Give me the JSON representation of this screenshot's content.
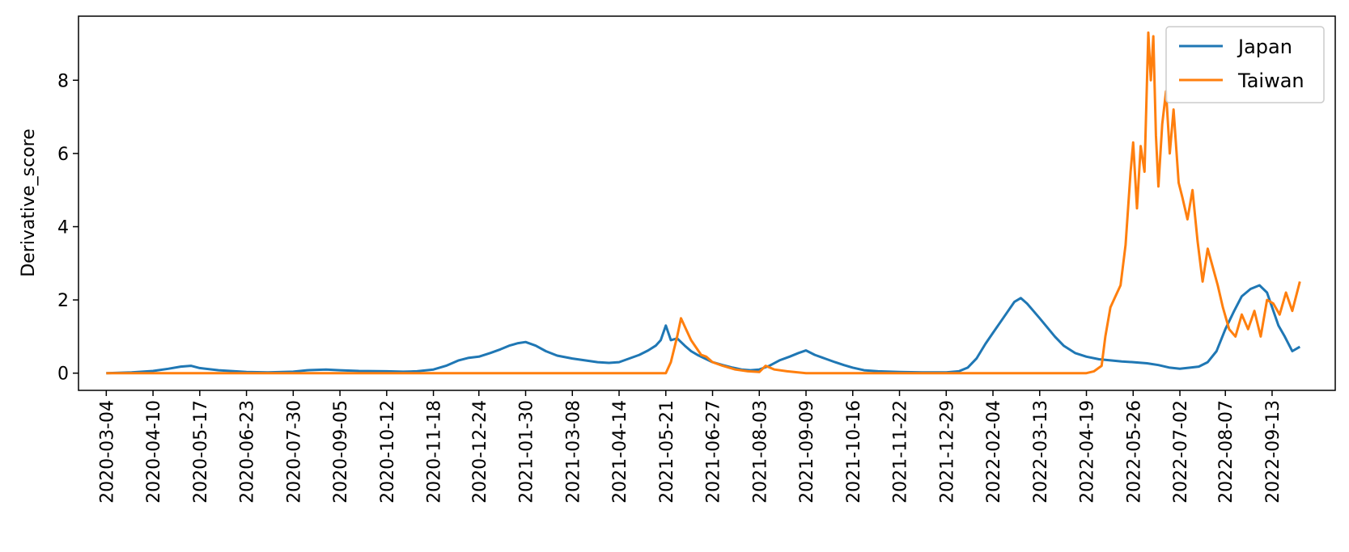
{
  "chart_data": {
    "type": "line",
    "title": "",
    "xlabel": "",
    "ylabel": "Derivative_score",
    "x_range": [
      "2020-02-11",
      "2022-11-02"
    ],
    "ylim": [
      -0.47,
      9.75
    ],
    "grid": false,
    "legend_position": "top-right",
    "x_ticks": [
      "2020-03-04",
      "2020-04-10",
      "2020-05-17",
      "2020-06-23",
      "2020-07-30",
      "2020-09-05",
      "2020-10-12",
      "2020-11-18",
      "2020-12-24",
      "2021-01-30",
      "2021-03-08",
      "2021-04-14",
      "2021-05-21",
      "2021-06-27",
      "2021-08-03",
      "2021-09-09",
      "2021-10-16",
      "2021-11-22",
      "2021-12-29",
      "2022-02-04",
      "2022-03-13",
      "2022-04-19",
      "2022-05-26",
      "2022-07-02",
      "2022-08-07",
      "2022-09-13"
    ],
    "y_ticks": [
      0,
      2,
      4,
      6,
      8
    ],
    "y_tick_labels": [
      "0",
      "2",
      "4",
      "6",
      "8"
    ],
    "series": [
      {
        "name": "Japan",
        "color": "#1f77b4",
        "x": [
          "2020-03-04",
          "2020-03-24",
          "2020-04-10",
          "2020-04-22",
          "2020-05-02",
          "2020-05-10",
          "2020-05-17",
          "2020-06-01",
          "2020-06-23",
          "2020-07-10",
          "2020-07-30",
          "2020-08-10",
          "2020-08-25",
          "2020-09-05",
          "2020-09-20",
          "2020-10-12",
          "2020-10-25",
          "2020-11-05",
          "2020-11-18",
          "2020-11-28",
          "2020-12-08",
          "2020-12-16",
          "2020-12-24",
          "2021-01-02",
          "2021-01-10",
          "2021-01-17",
          "2021-01-24",
          "2021-01-30",
          "2021-02-07",
          "2021-02-15",
          "2021-02-24",
          "2021-03-08",
          "2021-03-18",
          "2021-03-28",
          "2021-04-06",
          "2021-04-14",
          "2021-04-22",
          "2021-04-30",
          "2021-05-07",
          "2021-05-13",
          "2021-05-17",
          "2021-05-21",
          "2021-05-25",
          "2021-05-30",
          "2021-06-05",
          "2021-06-10",
          "2021-06-15",
          "2021-06-21",
          "2021-06-27",
          "2021-07-05",
          "2021-07-13",
          "2021-07-20",
          "2021-07-27",
          "2021-08-03",
          "2021-08-11",
          "2021-08-19",
          "2021-08-27",
          "2021-09-03",
          "2021-09-09",
          "2021-09-16",
          "2021-09-24",
          "2021-10-02",
          "2021-10-09",
          "2021-10-16",
          "2021-10-25",
          "2021-11-05",
          "2021-11-22",
          "2021-12-10",
          "2021-12-29",
          "2022-01-08",
          "2022-01-15",
          "2022-01-22",
          "2022-01-29",
          "2022-02-04",
          "2022-02-10",
          "2022-02-16",
          "2022-02-21",
          "2022-02-26",
          "2022-03-03",
          "2022-03-08",
          "2022-03-13",
          "2022-03-19",
          "2022-03-25",
          "2022-04-01",
          "2022-04-10",
          "2022-04-19",
          "2022-04-29",
          "2022-05-08",
          "2022-05-17",
          "2022-05-26",
          "2022-06-06",
          "2022-06-15",
          "2022-06-24",
          "2022-07-02",
          "2022-07-10",
          "2022-07-17",
          "2022-07-24",
          "2022-07-31",
          "2022-08-07",
          "2022-08-14",
          "2022-08-20",
          "2022-08-27",
          "2022-09-03",
          "2022-09-09",
          "2022-09-13",
          "2022-09-18",
          "2022-09-23",
          "2022-09-29",
          "2022-10-05"
        ],
        "values": [
          0.0,
          0.02,
          0.06,
          0.12,
          0.18,
          0.2,
          0.14,
          0.08,
          0.03,
          0.02,
          0.04,
          0.08,
          0.1,
          0.08,
          0.06,
          0.05,
          0.04,
          0.05,
          0.1,
          0.2,
          0.35,
          0.42,
          0.45,
          0.55,
          0.65,
          0.75,
          0.82,
          0.85,
          0.75,
          0.6,
          0.48,
          0.4,
          0.35,
          0.3,
          0.28,
          0.3,
          0.4,
          0.5,
          0.62,
          0.75,
          0.9,
          1.3,
          0.9,
          0.95,
          0.75,
          0.6,
          0.5,
          0.4,
          0.3,
          0.22,
          0.15,
          0.1,
          0.08,
          0.1,
          0.2,
          0.35,
          0.45,
          0.55,
          0.62,
          0.5,
          0.4,
          0.3,
          0.22,
          0.15,
          0.08,
          0.05,
          0.03,
          0.02,
          0.02,
          0.05,
          0.15,
          0.4,
          0.8,
          1.1,
          1.4,
          1.7,
          1.95,
          2.05,
          1.9,
          1.7,
          1.5,
          1.25,
          1.0,
          0.75,
          0.55,
          0.45,
          0.38,
          0.35,
          0.32,
          0.3,
          0.27,
          0.22,
          0.15,
          0.12,
          0.15,
          0.18,
          0.3,
          0.6,
          1.2,
          1.7,
          2.1,
          2.3,
          2.4,
          2.2,
          1.8,
          1.3,
          1.0,
          0.6,
          0.72
        ]
      },
      {
        "name": "Taiwan",
        "color": "#ff7f0e",
        "x": [
          "2020-03-04",
          "2020-09-05",
          "2021-01-30",
          "2021-05-21",
          "2021-05-25",
          "2021-05-30",
          "2021-06-02",
          "2021-06-06",
          "2021-06-10",
          "2021-06-14",
          "2021-06-18",
          "2021-06-22",
          "2021-06-27",
          "2021-07-05",
          "2021-07-15",
          "2021-07-25",
          "2021-08-03",
          "2021-08-08",
          "2021-08-15",
          "2021-08-25",
          "2021-09-09",
          "2021-10-16",
          "2021-11-22",
          "2021-12-29",
          "2022-02-04",
          "2022-03-13",
          "2022-04-19",
          "2022-04-25",
          "2022-05-01",
          "2022-05-04",
          "2022-05-08",
          "2022-05-12",
          "2022-05-16",
          "2022-05-20",
          "2022-05-24",
          "2022-05-26",
          "2022-05-29",
          "2022-06-01",
          "2022-06-04",
          "2022-06-07",
          "2022-06-09",
          "2022-06-11",
          "2022-06-13",
          "2022-06-15",
          "2022-06-18",
          "2022-06-21",
          "2022-06-24",
          "2022-06-27",
          "2022-07-01",
          "2022-07-04",
          "2022-07-08",
          "2022-07-12",
          "2022-07-16",
          "2022-07-20",
          "2022-07-24",
          "2022-07-28",
          "2022-08-01",
          "2022-08-05",
          "2022-08-10",
          "2022-08-15",
          "2022-08-20",
          "2022-08-25",
          "2022-08-30",
          "2022-09-04",
          "2022-09-09",
          "2022-09-14",
          "2022-09-19",
          "2022-09-24",
          "2022-09-29",
          "2022-10-05"
        ],
        "values": [
          0.0,
          0.0,
          0.0,
          0.0,
          0.3,
          1.0,
          1.5,
          1.2,
          0.9,
          0.7,
          0.5,
          0.45,
          0.3,
          0.2,
          0.1,
          0.05,
          0.03,
          0.2,
          0.1,
          0.05,
          0.0,
          0.0,
          0.0,
          0.0,
          0.0,
          0.0,
          0.0,
          0.05,
          0.2,
          1.0,
          1.8,
          2.1,
          2.4,
          3.5,
          5.5,
          6.3,
          4.5,
          6.2,
          5.5,
          9.3,
          8.0,
          9.2,
          6.5,
          5.1,
          6.8,
          7.7,
          6.0,
          7.2,
          5.2,
          4.8,
          4.2,
          5.0,
          3.6,
          2.5,
          3.4,
          2.9,
          2.4,
          1.8,
          1.2,
          1.0,
          1.6,
          1.2,
          1.7,
          1.0,
          2.0,
          1.9,
          1.6,
          2.2,
          1.7,
          2.5
        ]
      }
    ]
  }
}
